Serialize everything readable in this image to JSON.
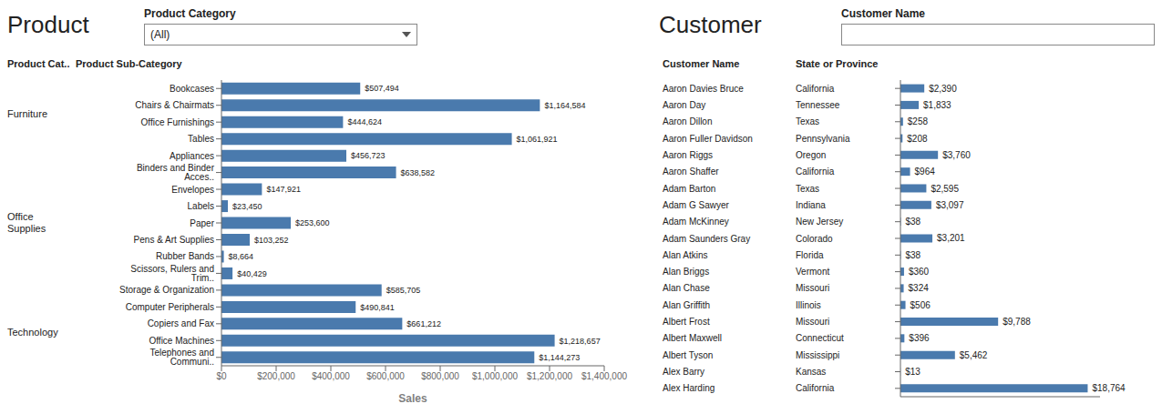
{
  "chart_data": [
    {
      "type": "bar",
      "orientation": "horizontal",
      "title": "Product",
      "filter_label": "Product Category",
      "filter_value": "(All)",
      "column_headers": [
        "Product Cat..",
        "Product Sub-Category"
      ],
      "groups": [
        {
          "name": "Furniture",
          "categories": [
            "Bookcases",
            "Chairs & Chairmats",
            "Office Furnishings",
            "Tables"
          ]
        },
        {
          "name": "Office\nSupplies",
          "categories": [
            "Appliances",
            "Binders and Binder Acces..",
            "Envelopes",
            "Labels",
            "Paper",
            "Pens & Art Supplies",
            "Rubber Bands",
            "Scissors, Rulers and Trim..",
            "Storage & Organization"
          ]
        },
        {
          "name": "Technology",
          "categories": [
            "Computer Peripherals",
            "Copiers and Fax",
            "Office Machines",
            "Telephones and Communi.."
          ]
        }
      ],
      "categories": [
        "Bookcases",
        "Chairs & Chairmats",
        "Office Furnishings",
        "Tables",
        "Appliances",
        "Binders and Binder Acces..",
        "Envelopes",
        "Labels",
        "Paper",
        "Pens & Art Supplies",
        "Rubber Bands",
        "Scissors, Rulers and Trim..",
        "Storage & Organization",
        "Computer Peripherals",
        "Copiers and Fax",
        "Office Machines",
        "Telephones and Communi.."
      ],
      "values": [
        507494,
        1164584,
        444624,
        1061921,
        456723,
        638582,
        147921,
        23450,
        253600,
        103252,
        8664,
        40429,
        585705,
        490841,
        661212,
        1218657,
        1144273
      ],
      "value_labels": [
        "$507,494",
        "$1,164,584",
        "$444,624",
        "$1,061,921",
        "$456,723",
        "$638,582",
        "$147,921",
        "$23,450",
        "$253,600",
        "$103,252",
        "$8,664",
        "$40,429",
        "$585,705",
        "$490,841",
        "$661,212",
        "$1,218,657",
        "$1,144,273"
      ],
      "data_labels": true,
      "color": "#4a7aad",
      "xlabel": "Sales",
      "xlim": [
        0,
        1400000
      ],
      "xticks": [
        {
          "value": 0,
          "label": "$0"
        },
        {
          "value": 200000,
          "label": "$200,000"
        },
        {
          "value": 400000,
          "label": "$400,000"
        },
        {
          "value": 600000,
          "label": "$600,000"
        },
        {
          "value": 800000,
          "label": "$800,000"
        },
        {
          "value": 1000000,
          "label": "$1,000,000"
        },
        {
          "value": 1200000,
          "label": "$1,200,000"
        },
        {
          "value": 1400000,
          "label": "$1,400,000"
        }
      ],
      "grid": false
    },
    {
      "type": "bar",
      "orientation": "horizontal",
      "title": "Customer",
      "filter_label": "Customer Name",
      "column_headers": [
        "Customer Name",
        "State or Province"
      ],
      "categories": [
        "Aaron Davies Bruce",
        "Aaron Day",
        "Aaron Dillon",
        "Aaron Fuller Davidson",
        "Aaron Riggs",
        "Aaron Shaffer",
        "Adam Barton",
        "Adam G Sawyer",
        "Adam McKinney",
        "Adam Saunders Gray",
        "Alan Atkins",
        "Alan Briggs",
        "Alan Chase",
        "Alan Griffith",
        "Albert Frost",
        "Albert Maxwell",
        "Albert Tyson",
        "Alex Barry",
        "Alex Harding"
      ],
      "states": [
        "California",
        "Tennessee",
        "Texas",
        "Pennsylvania",
        "Oregon",
        "California",
        "Texas",
        "Indiana",
        "New Jersey",
        "Colorado",
        "Florida",
        "Vermont",
        "Missouri",
        "Illinois",
        "Missouri",
        "Connecticut",
        "Mississippi",
        "Kansas",
        "California"
      ],
      "values": [
        2390,
        1833,
        258,
        208,
        3760,
        964,
        2595,
        3097,
        38,
        3201,
        38,
        360,
        324,
        506,
        9788,
        396,
        5462,
        13,
        18764
      ],
      "value_labels": [
        "$2,390",
        "$1,833",
        "$258",
        "$208",
        "$3,760",
        "$964",
        "$2,595",
        "$3,097",
        "$38",
        "$3,201",
        "$38",
        "$360",
        "$324",
        "$506",
        "$9,788",
        "$396",
        "$5,462",
        "$13",
        "$18,764"
      ],
      "data_labels": true,
      "color": "#4a7aad",
      "xlim": [
        0,
        20000
      ],
      "tick_labels": "y",
      "grid": false
    }
  ]
}
